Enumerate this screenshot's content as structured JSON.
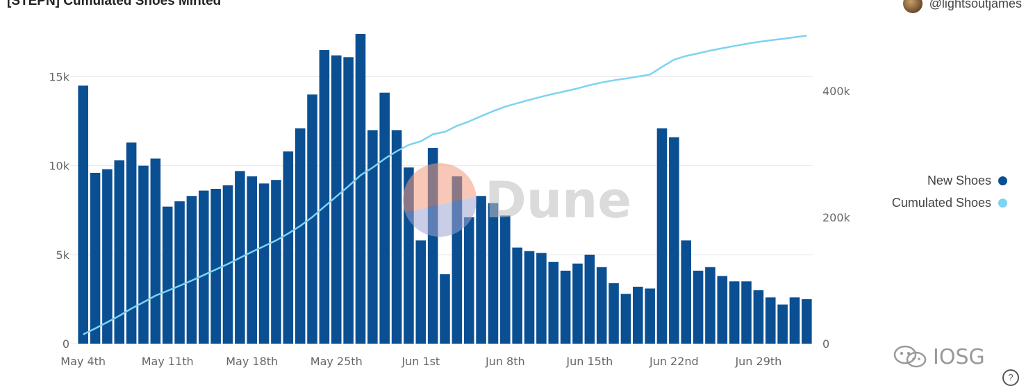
{
  "header": {
    "title": "[STEPN] Cumulated Shoes Minted",
    "author": "@lightsoutjames"
  },
  "watermark": {
    "text": "Dune"
  },
  "badge": {
    "text": "IOSG"
  },
  "colors": {
    "new_shoes": "#0b4f93",
    "cumulated": "#7dd3f0",
    "grid": "#e9e9e9"
  },
  "chart_data": {
    "type": "bar",
    "title": "[STEPN] Cumulated Shoes Minted",
    "x_tick_labels": [
      "May 4th",
      "May 11th",
      "May 18th",
      "May 25th",
      "Jun 1st",
      "Jun 8th",
      "Jun 15th",
      "Jun 22nd",
      "Jun 29th"
    ],
    "categories": [
      "May 4",
      "May 5",
      "May 6",
      "May 7",
      "May 8",
      "May 9",
      "May 10",
      "May 11",
      "May 12",
      "May 13",
      "May 14",
      "May 15",
      "May 16",
      "May 17",
      "May 18",
      "May 19",
      "May 20",
      "May 21",
      "May 22",
      "May 23",
      "May 24",
      "May 25",
      "May 26",
      "May 27",
      "May 28",
      "May 29",
      "May 30",
      "May 31",
      "Jun 1",
      "Jun 2",
      "Jun 3",
      "Jun 4",
      "Jun 5",
      "Jun 6",
      "Jun 7",
      "Jun 8",
      "Jun 9",
      "Jun 10",
      "Jun 11",
      "Jun 12",
      "Jun 13",
      "Jun 14",
      "Jun 15",
      "Jun 16",
      "Jun 17",
      "Jun 18",
      "Jun 19",
      "Jun 20",
      "Jun 21",
      "Jun 22",
      "Jun 23",
      "Jun 24",
      "Jun 25",
      "Jun 26",
      "Jun 27",
      "Jun 28",
      "Jun 29",
      "Jun 30",
      "Jul 1",
      "Jul 2",
      "Jul 3"
    ],
    "series": [
      {
        "name": "New Shoes",
        "axis": "left",
        "kind": "bar",
        "values": [
          14500,
          9600,
          9800,
          10300,
          11300,
          10000,
          10400,
          7700,
          8000,
          8300,
          8600,
          8700,
          8900,
          9700,
          9400,
          9000,
          9200,
          10800,
          12100,
          14000,
          16500,
          16200,
          16100,
          17400,
          12000,
          14100,
          12000,
          9900,
          5800,
          11000,
          3900,
          9400,
          7100,
          8300,
          7900,
          7200,
          5400,
          5200,
          5100,
          4600,
          4100,
          4500,
          5000,
          4300,
          3400,
          2800,
          3200,
          3100,
          12100,
          11600,
          5800,
          4100,
          4300,
          3800,
          3500,
          3500,
          3000,
          2600,
          2200,
          2600,
          2500
        ]
      },
      {
        "name": "Cumulated Shoes",
        "axis": "right",
        "kind": "line",
        "values": [
          14500,
          24100,
          33900,
          44200,
          55500,
          65500,
          75900,
          83600,
          91600,
          99900,
          108500,
          117200,
          126100,
          135800,
          145200,
          154200,
          163400,
          174200,
          186300,
          200300,
          216800,
          233000,
          249100,
          266500,
          278500,
          292600,
          304600,
          314500,
          320300,
          331300,
          335200,
          344600,
          351700,
          360000,
          367900,
          375100,
          380500,
          385700,
          390800,
          395400,
          399500,
          404000,
          409000,
          413300,
          416700,
          419500,
          422700,
          425800,
          437900,
          449500,
          455300,
          459400,
          463700,
          467500,
          471000,
          474500,
          477500,
          480100,
          482300,
          484900,
          487400
        ]
      }
    ],
    "y_left": {
      "ticks": [
        "0",
        "5k",
        "10k",
        "15k"
      ],
      "ylim": [
        0,
        17400
      ]
    },
    "y_right": {
      "ticks": [
        "0",
        "200k",
        "400k"
      ],
      "ylim": [
        0,
        490000
      ]
    },
    "legend": [
      "New Shoes",
      "Cumulated Shoes"
    ],
    "legend_position": "right",
    "grid": true
  }
}
